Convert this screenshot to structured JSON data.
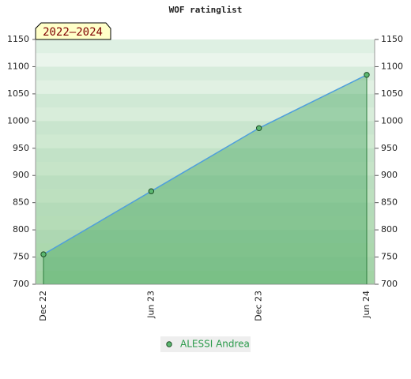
{
  "chart_data": {
    "type": "line",
    "title": "WOF ratinglist",
    "badge": "2022–2024",
    "categories": [
      "Dec 22",
      "Jun 23",
      "Dec 23",
      "Jun 24"
    ],
    "series": [
      {
        "name": "ALESSI Andrea",
        "color": "#4f9fdc",
        "values": [
          755,
          871,
          987,
          1085
        ]
      }
    ],
    "ylim": [
      700,
      1150
    ],
    "yticks": [
      700,
      750,
      800,
      850,
      900,
      950,
      1000,
      1050,
      1100,
      1150
    ],
    "y2lim": [
      700,
      1150
    ],
    "y2ticks": [
      700,
      750,
      800,
      850,
      900,
      950,
      1000,
      1050,
      1100,
      1150
    ]
  }
}
